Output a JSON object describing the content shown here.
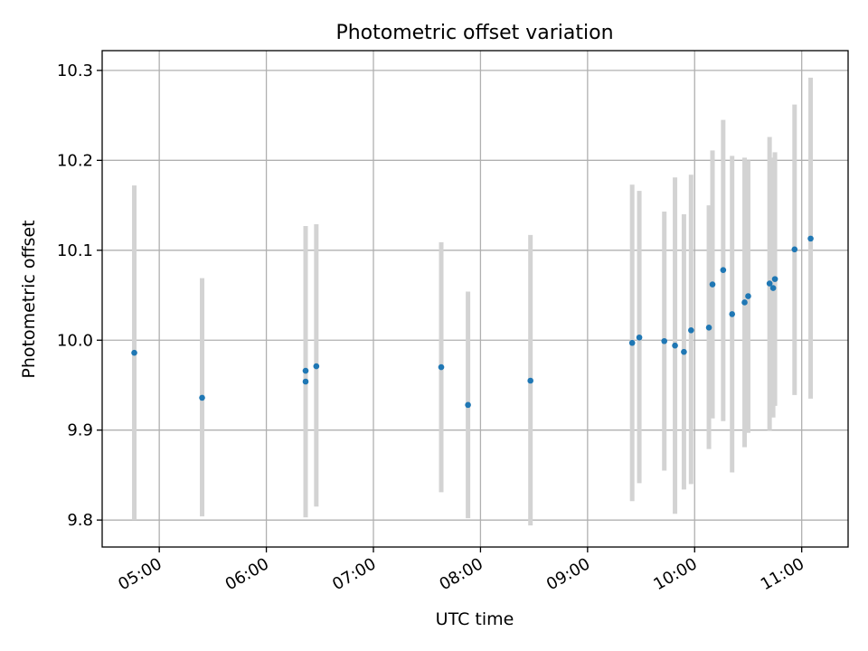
{
  "chart_data": {
    "type": "scatter",
    "title": "Photometric offset variation",
    "xlabel": "UTC time",
    "ylabel": "Photometric offset",
    "x_ticks": [
      "05:00",
      "06:00",
      "07:00",
      "08:00",
      "09:00",
      "10:00",
      "11:00"
    ],
    "y_ticks": [
      "9.8",
      "9.9",
      "10.0",
      "10.1",
      "10.2",
      "10.3"
    ],
    "xlim": [
      "04:28",
      "11:26"
    ],
    "ylim": [
      9.77,
      10.322
    ],
    "grid": true,
    "colors": {
      "point": "#1f77b4",
      "errorbar": "#d3d3d3",
      "grid": "#b0b0b0"
    },
    "points": [
      {
        "x": "04:46",
        "y": 9.986,
        "ylow": 9.8,
        "yhigh": 10.172
      },
      {
        "x": "05:24",
        "y": 9.936,
        "ylow": 9.804,
        "yhigh": 10.069
      },
      {
        "x": "06:22",
        "y": 9.954,
        "ylow": 9.803,
        "yhigh": 10.127
      },
      {
        "x": "06:22",
        "y": 9.966,
        "ylow": 9.803,
        "yhigh": 10.127
      },
      {
        "x": "06:28",
        "y": 9.971,
        "ylow": 9.815,
        "yhigh": 10.129
      },
      {
        "x": "07:38",
        "y": 9.97,
        "ylow": 9.831,
        "yhigh": 10.109
      },
      {
        "x": "07:53",
        "y": 9.928,
        "ylow": 9.802,
        "yhigh": 10.054
      },
      {
        "x": "08:28",
        "y": 9.955,
        "ylow": 9.794,
        "yhigh": 10.117
      },
      {
        "x": "09:25",
        "y": 9.997,
        "ylow": 9.821,
        "yhigh": 10.173
      },
      {
        "x": "09:29",
        "y": 10.003,
        "ylow": 9.841,
        "yhigh": 10.166
      },
      {
        "x": "09:43",
        "y": 9.999,
        "ylow": 9.855,
        "yhigh": 10.143
      },
      {
        "x": "09:49",
        "y": 9.994,
        "ylow": 9.807,
        "yhigh": 10.181
      },
      {
        "x": "09:54",
        "y": 9.987,
        "ylow": 9.834,
        "yhigh": 10.14
      },
      {
        "x": "09:58",
        "y": 10.011,
        "ylow": 9.84,
        "yhigh": 10.184
      },
      {
        "x": "10:08",
        "y": 10.014,
        "ylow": 9.879,
        "yhigh": 10.15
      },
      {
        "x": "10:10",
        "y": 10.062,
        "ylow": 9.913,
        "yhigh": 10.211
      },
      {
        "x": "10:16",
        "y": 10.078,
        "ylow": 9.91,
        "yhigh": 10.245
      },
      {
        "x": "10:21",
        "y": 10.029,
        "ylow": 9.853,
        "yhigh": 10.205
      },
      {
        "x": "10:28",
        "y": 10.042,
        "ylow": 9.881,
        "yhigh": 10.203
      },
      {
        "x": "10:30",
        "y": 10.049,
        "ylow": 9.897,
        "yhigh": 10.2
      },
      {
        "x": "10:42",
        "y": 10.063,
        "ylow": 9.9,
        "yhigh": 10.226
      },
      {
        "x": "10:44",
        "y": 10.058,
        "ylow": 9.914,
        "yhigh": 10.203
      },
      {
        "x": "10:45",
        "y": 10.068,
        "ylow": 9.927,
        "yhigh": 10.209
      },
      {
        "x": "10:56",
        "y": 10.101,
        "ylow": 9.939,
        "yhigh": 10.262
      },
      {
        "x": "11:05",
        "y": 10.113,
        "ylow": 9.935,
        "yhigh": 10.292
      }
    ]
  }
}
